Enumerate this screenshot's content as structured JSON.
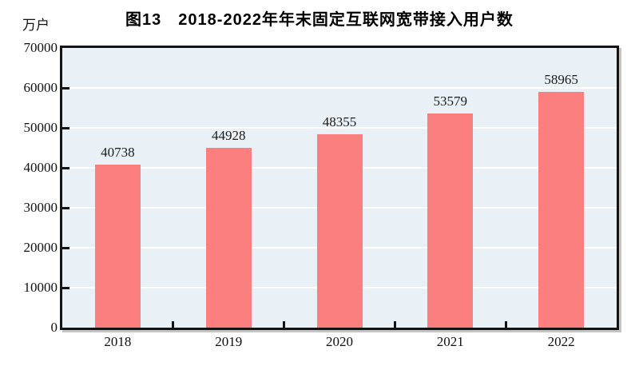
{
  "chart_data": {
    "type": "bar",
    "title": "图13　2018-2022年年末固定互联网宽带接入用户数",
    "unit_label": "万户",
    "categories": [
      "2018",
      "2019",
      "2020",
      "2021",
      "2022"
    ],
    "values": [
      40738,
      44928,
      48355,
      53579,
      58965
    ],
    "ylim": [
      0,
      70000
    ],
    "ytick_step": 10000,
    "grid": true,
    "legend": "none",
    "colors": {
      "bar": "#FB7F7F",
      "plot_bg": "#EAF1F6",
      "gridline": "#FFFFFF",
      "axis": "#141414",
      "text": "#000000"
    }
  }
}
